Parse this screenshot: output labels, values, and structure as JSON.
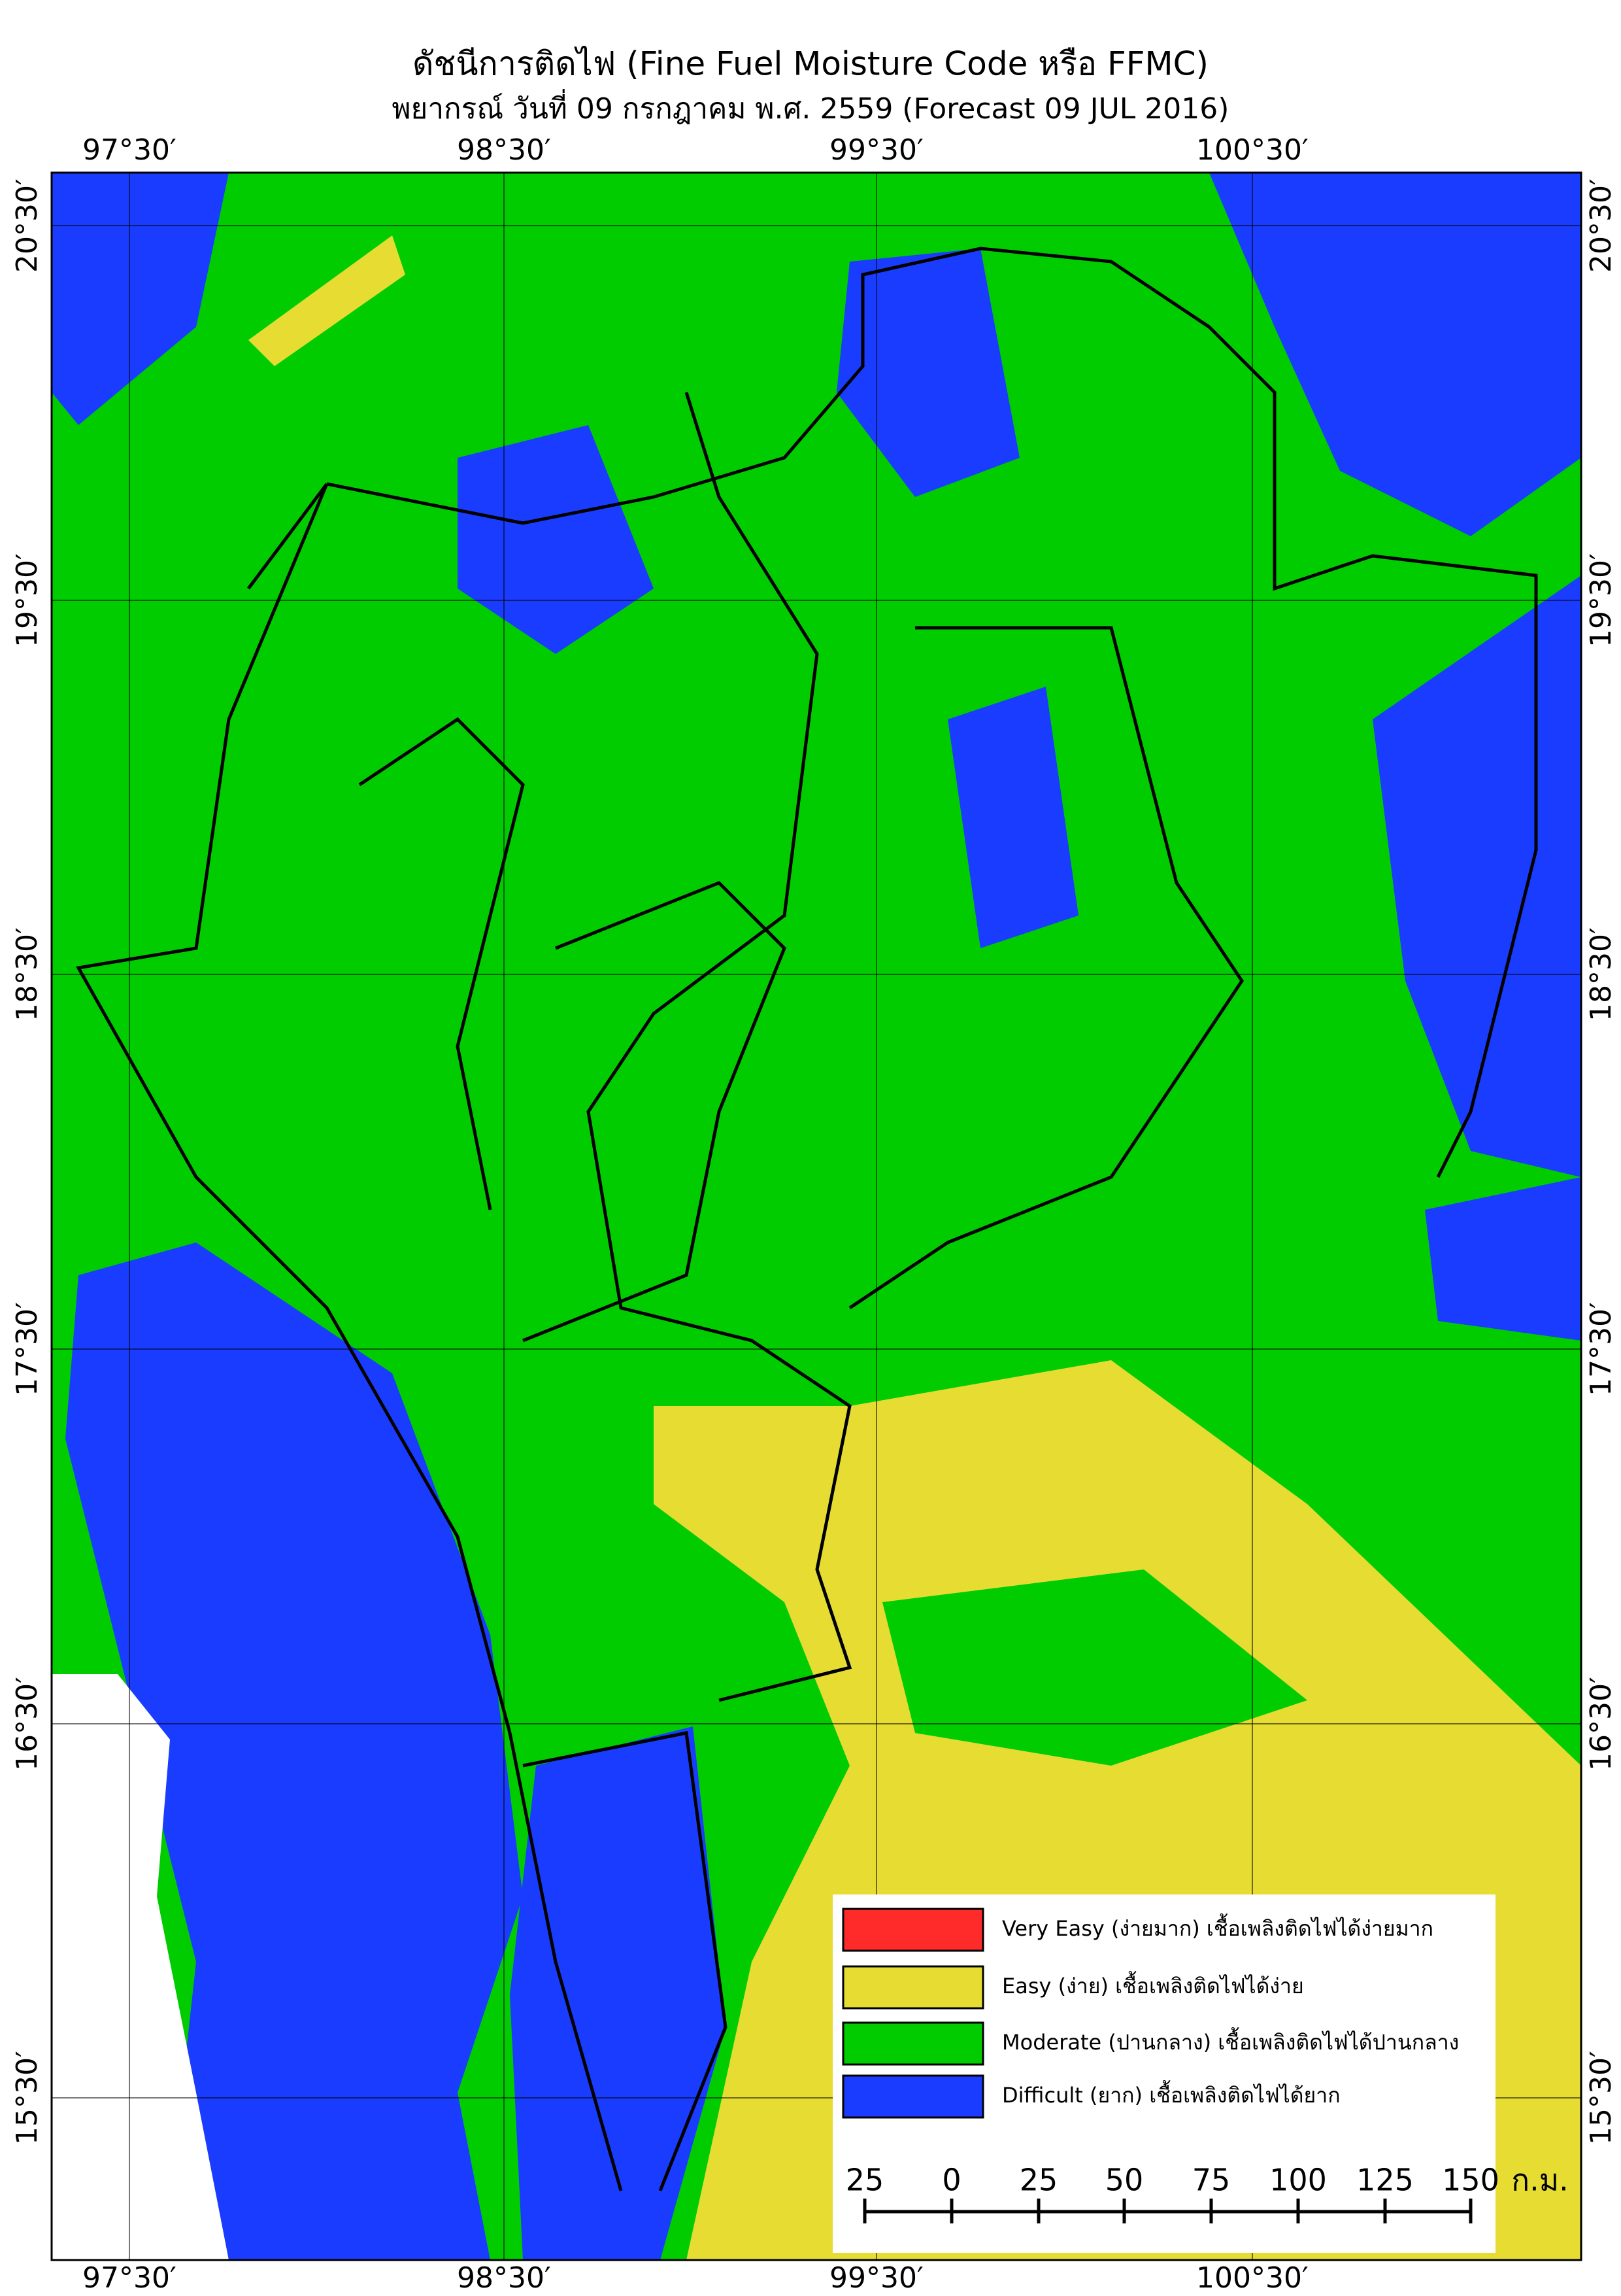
{
  "header": {
    "title": "ดัชนีการติดไฟ (Fine Fuel Moisture Code หรือ FFMC)",
    "subtitle": "พยากรณ์ วันที่ 09 กรกฎาคม พ.ศ. 2559 (Forecast 09 JUL 2016)"
  },
  "map": {
    "lon_labels": [
      "97°30′",
      "98°30′",
      "99°30′",
      "100°30′"
    ],
    "lat_labels": [
      "20°30′",
      "19°30′",
      "18°30′",
      "17°30′",
      "16°30′",
      "15°30′"
    ]
  },
  "legend": {
    "items": [
      {
        "label": "Very Easy (ง่ายมาก) เชื้อเพลิงติดไฟได้ง่ายมาก",
        "color": "#ff2a2a"
      },
      {
        "label": "Easy (ง่าย) เชื้อเพลิงติดไฟได้ง่าย",
        "color": "#e6dc32"
      },
      {
        "label": "Moderate (ปานกลาง) เชื้อเพลิงติดไฟได้ปานกลาง",
        "color": "#00cc00"
      },
      {
        "label": "Difficult (ยาก) เชื้อเพลิงติดไฟได้ยาก",
        "color": "#1a3cff"
      }
    ]
  },
  "scale_bar": {
    "labels": [
      "25",
      "0",
      "25",
      "50",
      "75",
      "100",
      "125",
      "150"
    ],
    "unit": "ก.ม."
  }
}
